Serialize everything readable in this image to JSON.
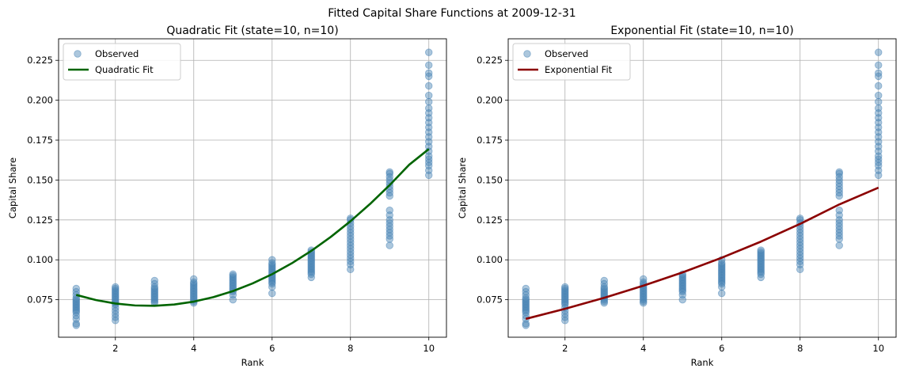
{
  "figure": {
    "suptitle": "Fitted Capital Share Functions at 2009-12-31"
  },
  "chart_data": [
    {
      "type": "scatter",
      "title": "Quadratic Fit (state=10, n=10)",
      "xlabel": "Rank",
      "ylabel": "Capital Share",
      "xlim": [
        0.55,
        10.45
      ],
      "ylim": [
        0.0515,
        0.2385
      ],
      "xticks": [
        2,
        4,
        6,
        8,
        10
      ],
      "yticks": [
        0.075,
        0.1,
        0.125,
        0.15,
        0.175,
        0.2,
        0.225
      ],
      "ytick_labels": [
        "0.075",
        "0.100",
        "0.125",
        "0.150",
        "0.175",
        "0.200",
        "0.225"
      ],
      "grid": true,
      "legend_position": "top-left",
      "legend": [
        "Observed",
        "Quadratic Fit"
      ],
      "observed_color": "#4682b4",
      "fit_color": "#006400",
      "observed": [
        {
          "x": 1,
          "y": [
            0.059,
            0.06,
            0.063,
            0.065,
            0.067,
            0.068,
            0.069,
            0.07,
            0.071,
            0.072,
            0.073,
            0.074,
            0.075,
            0.076,
            0.078,
            0.08,
            0.082
          ]
        },
        {
          "x": 2,
          "y": [
            0.062,
            0.064,
            0.066,
            0.068,
            0.07,
            0.072,
            0.073,
            0.074,
            0.075,
            0.076,
            0.077,
            0.078,
            0.079,
            0.08,
            0.081,
            0.082,
            0.083
          ]
        },
        {
          "x": 3,
          "y": [
            0.073,
            0.074,
            0.075,
            0.076,
            0.077,
            0.078,
            0.079,
            0.08,
            0.081,
            0.082,
            0.083,
            0.085,
            0.087
          ]
        },
        {
          "x": 4,
          "y": [
            0.073,
            0.074,
            0.075,
            0.076,
            0.077,
            0.078,
            0.079,
            0.08,
            0.081,
            0.082,
            0.083,
            0.084,
            0.085,
            0.086,
            0.088
          ]
        },
        {
          "x": 5,
          "y": [
            0.075,
            0.078,
            0.08,
            0.081,
            0.082,
            0.083,
            0.084,
            0.085,
            0.086,
            0.087,
            0.088,
            0.089,
            0.09,
            0.091
          ]
        },
        {
          "x": 6,
          "y": [
            0.079,
            0.083,
            0.085,
            0.086,
            0.087,
            0.088,
            0.089,
            0.09,
            0.091,
            0.092,
            0.093,
            0.094,
            0.095,
            0.096,
            0.097,
            0.098,
            0.1
          ]
        },
        {
          "x": 7,
          "y": [
            0.089,
            0.091,
            0.092,
            0.093,
            0.094,
            0.095,
            0.096,
            0.097,
            0.098,
            0.099,
            0.1,
            0.101,
            0.102,
            0.103,
            0.104,
            0.105,
            0.106
          ]
        },
        {
          "x": 8,
          "y": [
            0.094,
            0.097,
            0.099,
            0.101,
            0.103,
            0.105,
            0.107,
            0.109,
            0.111,
            0.113,
            0.115,
            0.117,
            0.119,
            0.121,
            0.123,
            0.125,
            0.126
          ]
        },
        {
          "x": 9,
          "y": [
            0.109,
            0.113,
            0.115,
            0.117,
            0.119,
            0.121,
            0.123,
            0.125,
            0.128,
            0.131,
            0.14,
            0.142,
            0.144,
            0.146,
            0.148,
            0.15,
            0.152,
            0.154,
            0.155
          ]
        },
        {
          "x": 10,
          "y": [
            0.153,
            0.156,
            0.159,
            0.161,
            0.163,
            0.165,
            0.168,
            0.171,
            0.174,
            0.177,
            0.18,
            0.183,
            0.186,
            0.189,
            0.192,
            0.195,
            0.199,
            0.203,
            0.209,
            0.215,
            0.217,
            0.222,
            0.23
          ]
        }
      ],
      "fit": {
        "x": [
          1,
          1.5,
          2,
          2.5,
          3,
          3.5,
          4,
          4.5,
          5,
          5.5,
          6,
          6.5,
          7,
          7.5,
          8,
          8.5,
          9,
          9.5,
          10
        ],
        "y": [
          0.078,
          0.0748,
          0.0726,
          0.0714,
          0.0712,
          0.072,
          0.0738,
          0.0766,
          0.0804,
          0.0852,
          0.091,
          0.0978,
          0.1056,
          0.1144,
          0.1242,
          0.135,
          0.1468,
          0.1596,
          0.1694
        ]
      }
    },
    {
      "type": "scatter",
      "title": "Exponential Fit (state=10, n=10)",
      "xlabel": "Rank",
      "ylabel": "Capital Share",
      "xlim": [
        0.55,
        10.45
      ],
      "ylim": [
        0.0515,
        0.2385
      ],
      "xticks": [
        2,
        4,
        6,
        8,
        10
      ],
      "yticks": [
        0.075,
        0.1,
        0.125,
        0.15,
        0.175,
        0.2,
        0.225
      ],
      "ytick_labels": [
        "0.075",
        "0.100",
        "0.125",
        "0.150",
        "0.175",
        "0.200",
        "0.225"
      ],
      "grid": true,
      "legend_position": "top-left",
      "legend": [
        "Observed",
        "Exponential Fit"
      ],
      "observed_color": "#4682b4",
      "fit_color": "#8b0000",
      "observed": [
        {
          "x": 1,
          "y": [
            0.059,
            0.06,
            0.063,
            0.065,
            0.067,
            0.068,
            0.069,
            0.07,
            0.071,
            0.072,
            0.073,
            0.074,
            0.075,
            0.076,
            0.078,
            0.08,
            0.082
          ]
        },
        {
          "x": 2,
          "y": [
            0.062,
            0.064,
            0.066,
            0.068,
            0.07,
            0.072,
            0.073,
            0.074,
            0.075,
            0.076,
            0.077,
            0.078,
            0.079,
            0.08,
            0.081,
            0.082,
            0.083
          ]
        },
        {
          "x": 3,
          "y": [
            0.073,
            0.074,
            0.075,
            0.076,
            0.077,
            0.078,
            0.079,
            0.08,
            0.081,
            0.082,
            0.083,
            0.085,
            0.087
          ]
        },
        {
          "x": 4,
          "y": [
            0.073,
            0.074,
            0.075,
            0.076,
            0.077,
            0.078,
            0.079,
            0.08,
            0.081,
            0.082,
            0.083,
            0.084,
            0.085,
            0.086,
            0.088
          ]
        },
        {
          "x": 5,
          "y": [
            0.075,
            0.078,
            0.08,
            0.081,
            0.082,
            0.083,
            0.084,
            0.085,
            0.086,
            0.087,
            0.088,
            0.089,
            0.09,
            0.091
          ]
        },
        {
          "x": 6,
          "y": [
            0.079,
            0.083,
            0.085,
            0.086,
            0.087,
            0.088,
            0.089,
            0.09,
            0.091,
            0.092,
            0.093,
            0.094,
            0.095,
            0.096,
            0.097,
            0.098,
            0.1
          ]
        },
        {
          "x": 7,
          "y": [
            0.089,
            0.091,
            0.092,
            0.093,
            0.094,
            0.095,
            0.096,
            0.097,
            0.098,
            0.099,
            0.1,
            0.101,
            0.102,
            0.103,
            0.104,
            0.105,
            0.106
          ]
        },
        {
          "x": 8,
          "y": [
            0.094,
            0.097,
            0.099,
            0.101,
            0.103,
            0.105,
            0.107,
            0.109,
            0.111,
            0.113,
            0.115,
            0.117,
            0.119,
            0.121,
            0.123,
            0.125,
            0.126
          ]
        },
        {
          "x": 9,
          "y": [
            0.109,
            0.113,
            0.115,
            0.117,
            0.119,
            0.121,
            0.123,
            0.125,
            0.128,
            0.131,
            0.14,
            0.142,
            0.144,
            0.146,
            0.148,
            0.15,
            0.152,
            0.154,
            0.155
          ]
        },
        {
          "x": 10,
          "y": [
            0.153,
            0.156,
            0.159,
            0.161,
            0.163,
            0.165,
            0.168,
            0.171,
            0.174,
            0.177,
            0.18,
            0.183,
            0.186,
            0.189,
            0.192,
            0.195,
            0.199,
            0.203,
            0.209,
            0.215,
            0.217,
            0.222,
            0.23
          ]
        }
      ],
      "fit": {
        "x": [
          1,
          2,
          3,
          4,
          5,
          6,
          7,
          8,
          9,
          10
        ],
        "y": [
          0.063,
          0.0693,
          0.0762,
          0.0838,
          0.0921,
          0.1013,
          0.1114,
          0.1225,
          0.1347,
          0.1452
        ]
      }
    }
  ]
}
